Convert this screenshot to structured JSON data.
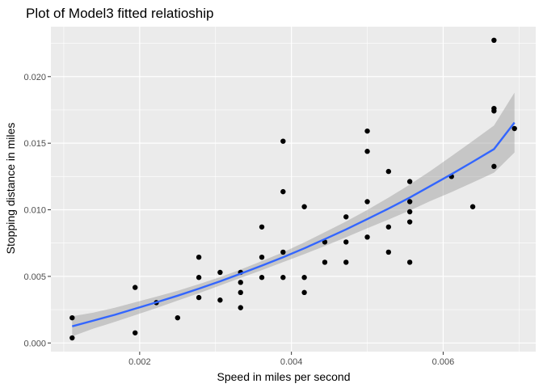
{
  "chart_data": {
    "type": "scatter",
    "title": "Plot of Model3 fitted relatioship",
    "xlabel": "Speed in miles per second",
    "ylabel": "Stopping distance in miles",
    "xlim": [
      0.00083,
      0.00722
    ],
    "ylim": [
      -0.00065,
      0.02375
    ],
    "x_ticks": [
      0.002,
      0.004,
      0.006
    ],
    "x_tick_labels": [
      "0.002",
      "0.004",
      "0.006"
    ],
    "y_ticks": [
      0.0,
      0.005,
      0.01,
      0.015,
      0.02
    ],
    "y_tick_labels": [
      "0.000",
      "0.005",
      "0.010",
      "0.015",
      "0.020"
    ],
    "grid": true,
    "colors": {
      "panel": "#ebebeb",
      "grid_major": "#ffffff",
      "points": "#000000",
      "fit_line": "#3366ff",
      "ribbon": "#999999"
    },
    "points": [
      [
        0.00111,
        0.00038
      ],
      [
        0.00111,
        0.00189
      ],
      [
        0.00194,
        0.00076
      ],
      [
        0.00194,
        0.00417
      ],
      [
        0.00222,
        0.00303
      ],
      [
        0.0025,
        0.00189
      ],
      [
        0.00278,
        0.00341
      ],
      [
        0.00278,
        0.00492
      ],
      [
        0.00278,
        0.00644
      ],
      [
        0.00306,
        0.0053
      ],
      [
        0.00306,
        0.00322
      ],
      [
        0.00333,
        0.00265
      ],
      [
        0.00333,
        0.00379
      ],
      [
        0.00333,
        0.00455
      ],
      [
        0.00333,
        0.0053
      ],
      [
        0.00361,
        0.00492
      ],
      [
        0.00361,
        0.00644
      ],
      [
        0.00361,
        0.00871
      ],
      [
        0.00389,
        0.00492
      ],
      [
        0.00389,
        0.00682
      ],
      [
        0.00389,
        0.01136
      ],
      [
        0.00389,
        0.01515
      ],
      [
        0.00417,
        0.00379
      ],
      [
        0.00417,
        0.00492
      ],
      [
        0.00417,
        0.01023
      ],
      [
        0.00444,
        0.00606
      ],
      [
        0.00444,
        0.00758
      ],
      [
        0.00472,
        0.00606
      ],
      [
        0.00472,
        0.00758
      ],
      [
        0.00472,
        0.00947
      ],
      [
        0.005,
        0.00795
      ],
      [
        0.005,
        0.01061
      ],
      [
        0.005,
        0.01439
      ],
      [
        0.005,
        0.01591
      ],
      [
        0.00528,
        0.00682
      ],
      [
        0.00528,
        0.00871
      ],
      [
        0.00528,
        0.01288
      ],
      [
        0.00556,
        0.00606
      ],
      [
        0.00556,
        0.00909
      ],
      [
        0.00556,
        0.00985
      ],
      [
        0.00556,
        0.01061
      ],
      [
        0.00556,
        0.01212
      ],
      [
        0.00611,
        0.0125
      ],
      [
        0.00639,
        0.01023
      ],
      [
        0.00667,
        0.01326
      ],
      [
        0.00667,
        0.01742
      ],
      [
        0.00667,
        0.01761
      ],
      [
        0.00667,
        0.02273
      ],
      [
        0.00694,
        0.0161
      ]
    ],
    "fit": {
      "x": [
        0.00111,
        0.00139,
        0.00167,
        0.00194,
        0.00222,
        0.0025,
        0.00278,
        0.00306,
        0.00333,
        0.00361,
        0.00389,
        0.00417,
        0.00444,
        0.00472,
        0.005,
        0.00528,
        0.00556,
        0.00583,
        0.00611,
        0.00639,
        0.00667,
        0.00694
      ],
      "y": [
        0.00125,
        0.00168,
        0.00211,
        0.00257,
        0.00305,
        0.00355,
        0.00408,
        0.00463,
        0.0052,
        0.00581,
        0.00644,
        0.00711,
        0.0078,
        0.00853,
        0.0093,
        0.01009,
        0.01092,
        0.01178,
        0.01268,
        0.01361,
        0.01456,
        0.01655
      ],
      "lower": [
        0.0005,
        0.00108,
        0.00158,
        0.00209,
        0.00262,
        0.00318,
        0.00374,
        0.00432,
        0.00489,
        0.00547,
        0.00607,
        0.00667,
        0.00728,
        0.00794,
        0.00861,
        0.00927,
        0.00995,
        0.01065,
        0.01133,
        0.01205,
        0.01279,
        0.0143
      ],
      "upper": [
        0.002,
        0.00228,
        0.00264,
        0.00305,
        0.00348,
        0.00392,
        0.00442,
        0.00494,
        0.00551,
        0.00615,
        0.00681,
        0.00755,
        0.00832,
        0.00912,
        0.00999,
        0.01091,
        0.01189,
        0.01291,
        0.01403,
        0.01517,
        0.01633,
        0.0188
      ]
    }
  }
}
